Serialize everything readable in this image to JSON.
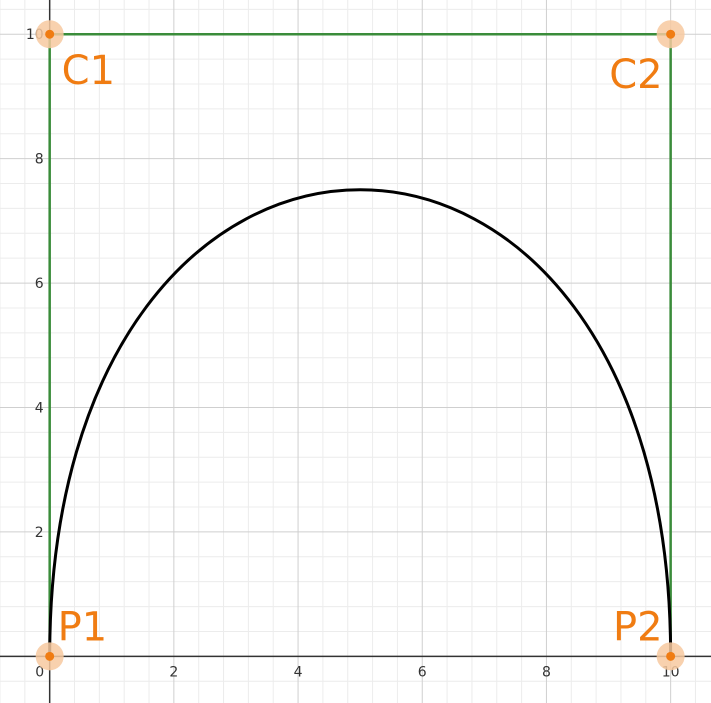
{
  "chart_data": {
    "type": "line",
    "title": "",
    "xlabel": "",
    "ylabel": "",
    "xlim": [
      -0.8,
      10.65
    ],
    "ylim": [
      -0.75,
      10.55
    ],
    "grid": true,
    "x_ticks": [
      "0",
      "2",
      "4",
      "6",
      "8",
      "10"
    ],
    "y_ticks": [
      "2",
      "4",
      "6",
      "8",
      "10"
    ],
    "points": [
      {
        "name": "P1",
        "x": 0,
        "y": 0
      },
      {
        "name": "C1",
        "x": 0,
        "y": 10
      },
      {
        "name": "C2",
        "x": 10,
        "y": 10
      },
      {
        "name": "P2",
        "x": 10,
        "y": 0
      }
    ],
    "control_polygon": [
      [
        0,
        0
      ],
      [
        0,
        10
      ],
      [
        10,
        10
      ],
      [
        10,
        0
      ]
    ],
    "series": [
      {
        "type": "cubic-bezier",
        "control_points": [
          [
            0,
            0
          ],
          [
            0,
            10
          ],
          [
            10,
            10
          ],
          [
            10,
            0
          ]
        ],
        "peak": [
          5,
          7.5
        ]
      }
    ],
    "colors": {
      "curve": "#000000",
      "polygon": "#3a8c3a",
      "point": "#f07c12",
      "point_halo": "#f7c9a0",
      "label": "#f07c12",
      "axis": "#333333",
      "grid_major": "#cfcfcf",
      "grid_minor": "#ececec"
    }
  }
}
